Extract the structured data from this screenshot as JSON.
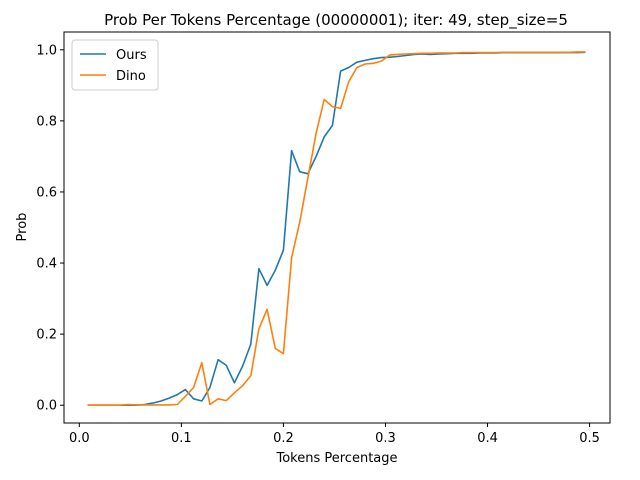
{
  "chart_data": {
    "type": "line",
    "title": "Prob Per Tokens Percentage (00000001); iter: 49, step_size=5",
    "xlabel": "Tokens Percentage",
    "ylabel": "Prob",
    "xlim": [
      -0.015,
      0.52
    ],
    "ylim": [
      -0.05,
      1.05
    ],
    "xticks": [
      0.0,
      0.1,
      0.2,
      0.3,
      0.4,
      0.5
    ],
    "xtick_labels": [
      "0.0",
      "0.1",
      "0.2",
      "0.3",
      "0.4",
      "0.5"
    ],
    "yticks": [
      0.0,
      0.2,
      0.4,
      0.6,
      0.8,
      1.0
    ],
    "ytick_labels": [
      "0.0",
      "0.2",
      "0.4",
      "0.6",
      "0.8",
      "1.0"
    ],
    "grid": false,
    "legend_position": "top-left",
    "series": [
      {
        "name": "Ours",
        "color": "#1f77b4",
        "x": [
          0.008,
          0.016,
          0.024,
          0.032,
          0.04,
          0.048,
          0.056,
          0.064,
          0.072,
          0.08,
          0.088,
          0.096,
          0.104,
          0.112,
          0.12,
          0.128,
          0.136,
          0.144,
          0.152,
          0.16,
          0.168,
          0.176,
          0.184,
          0.192,
          0.2,
          0.208,
          0.216,
          0.224,
          0.232,
          0.24,
          0.248,
          0.256,
          0.264,
          0.272,
          0.28,
          0.288,
          0.296,
          0.304,
          0.312,
          0.32,
          0.328,
          0.336,
          0.344,
          0.352,
          0.36,
          0.368,
          0.376,
          0.384,
          0.392,
          0.4,
          0.408,
          0.416,
          0.424,
          0.432,
          0.44,
          0.448,
          0.456,
          0.464,
          0.472,
          0.48,
          0.488,
          0.496
        ],
        "values": [
          0.0,
          0.0,
          0.0,
          0.0,
          0.0,
          0.0,
          0.0,
          0.002,
          0.006,
          0.012,
          0.02,
          0.03,
          0.044,
          0.018,
          0.012,
          0.05,
          0.128,
          0.112,
          0.063,
          0.11,
          0.172,
          0.384,
          0.337,
          0.38,
          0.436,
          0.716,
          0.657,
          0.651,
          0.7,
          0.755,
          0.787,
          0.94,
          0.95,
          0.965,
          0.97,
          0.975,
          0.978,
          0.979,
          0.981,
          0.984,
          0.987,
          0.988,
          0.987,
          0.988,
          0.989,
          0.99,
          0.99,
          0.99,
          0.991,
          0.991,
          0.991,
          0.992,
          0.992,
          0.992,
          0.992,
          0.992,
          0.992,
          0.992,
          0.992,
          0.992,
          0.992,
          0.993
        ]
      },
      {
        "name": "Dino",
        "color": "#ff7f0e",
        "x": [
          0.008,
          0.016,
          0.024,
          0.032,
          0.04,
          0.048,
          0.056,
          0.064,
          0.072,
          0.08,
          0.088,
          0.096,
          0.104,
          0.112,
          0.12,
          0.128,
          0.136,
          0.144,
          0.152,
          0.16,
          0.168,
          0.176,
          0.184,
          0.192,
          0.2,
          0.208,
          0.216,
          0.224,
          0.232,
          0.24,
          0.248,
          0.256,
          0.264,
          0.272,
          0.28,
          0.288,
          0.296,
          0.304,
          0.312,
          0.32,
          0.328,
          0.336,
          0.344,
          0.352,
          0.36,
          0.368,
          0.376,
          0.384,
          0.392,
          0.4,
          0.408,
          0.416,
          0.424,
          0.432,
          0.44,
          0.448,
          0.456,
          0.464,
          0.472,
          0.48,
          0.488,
          0.496
        ],
        "values": [
          0.0,
          0.0,
          0.0,
          0.0,
          0.0,
          0.002,
          0.001,
          0.001,
          0.001,
          0.001,
          0.001,
          0.002,
          0.025,
          0.05,
          0.12,
          0.002,
          0.018,
          0.013,
          0.035,
          0.055,
          0.083,
          0.215,
          0.27,
          0.16,
          0.145,
          0.415,
          0.515,
          0.64,
          0.765,
          0.86,
          0.84,
          0.835,
          0.91,
          0.95,
          0.96,
          0.962,
          0.968,
          0.985,
          0.987,
          0.988,
          0.989,
          0.99,
          0.99,
          0.991,
          0.991,
          0.991,
          0.992,
          0.992,
          0.992,
          0.992,
          0.992,
          0.993,
          0.993,
          0.993,
          0.993,
          0.993,
          0.993,
          0.993,
          0.993,
          0.993,
          0.994,
          0.994
        ]
      }
    ]
  }
}
